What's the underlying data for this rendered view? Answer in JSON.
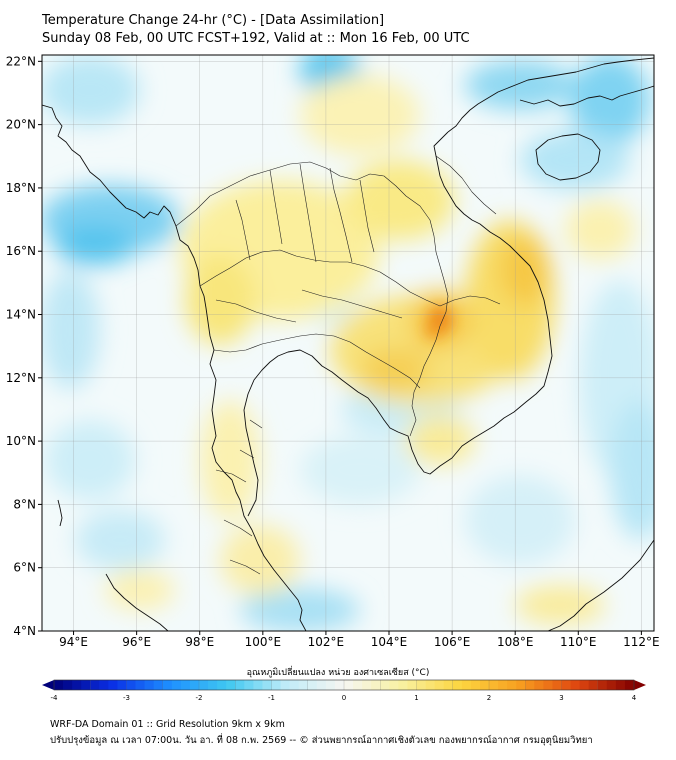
{
  "header": {
    "title": "Temperature Change 24-hr (°C) - [Data Assimilation]",
    "subtitle": "Sunday 08 Feb, 00 UTC FCST+192, Valid at :: Mon 16 Feb, 00 UTC"
  },
  "map": {
    "lat_labels": [
      "22°N",
      "20°N",
      "18°N",
      "16°N",
      "14°N",
      "12°N",
      "10°N",
      "8°N",
      "6°N",
      "4°N"
    ],
    "lon_labels": [
      "94°E",
      "96°E",
      "98°E",
      "100°E",
      "102°E",
      "104°E",
      "106°E",
      "108°E",
      "110°E",
      "112°E"
    ],
    "lat_range": [
      4,
      22.2
    ],
    "lon_range": [
      93,
      112.4
    ]
  },
  "colorbar": {
    "title": "อุณหภูมิเปลี่ยนแปลง หน่วย องศาเซลเซียส (°C)",
    "ticks": [
      "-4",
      "-3",
      "-2",
      "-1",
      "0",
      "1",
      "2",
      "3",
      "4"
    ],
    "min": -4,
    "max": 4,
    "colors": [
      "#00007a",
      "#0a2fe6",
      "#1e90ff",
      "#40c8f0",
      "#c0ecf8",
      "#f6f6f2",
      "#f8f0a0",
      "#fcd640",
      "#f8a020",
      "#e04810",
      "#820000"
    ]
  },
  "footer": {
    "line1": "WRF-DA Domain 01 :: Grid Resolution 9km x 9km",
    "line2": "ปรับปรุงข้อมูล ณ เวลา 07:00น. วัน อา. ที่ 08 ก.พ. 2569 -- © ส่วนพยากรณ์อากาศเชิงตัวเลข กองพยากรณ์อากาศ กรมอุตุนิยมวิทยา"
  }
}
